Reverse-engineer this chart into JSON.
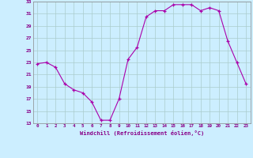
{
  "hours": [
    0,
    1,
    2,
    3,
    4,
    5,
    6,
    7,
    8,
    9,
    10,
    11,
    12,
    13,
    14,
    15,
    16,
    17,
    18,
    19,
    20,
    21,
    22,
    23
  ],
  "windchill": [
    22.8,
    23.0,
    22.2,
    19.5,
    18.5,
    18.0,
    16.5,
    13.5,
    13.5,
    17.0,
    23.5,
    25.5,
    30.5,
    31.5,
    31.5,
    32.5,
    32.5,
    32.5,
    31.5,
    32.0,
    31.5,
    26.5,
    23.0,
    19.5
  ],
  "line_color": "#aa00aa",
  "marker_color": "#aa00aa",
  "bg_color": "#cceeff",
  "grid_color": "#aacccc",
  "text_color": "#880088",
  "xlabel": "Windchill (Refroidissement éolien,°C)",
  "ylim": [
    13,
    33
  ],
  "yticks": [
    13,
    15,
    17,
    19,
    21,
    23,
    25,
    27,
    29,
    31,
    33
  ],
  "xlim": [
    -0.5,
    23.5
  ],
  "xtick_labels": [
    "0",
    "1",
    "2",
    "3",
    "4",
    "5",
    "6",
    "7",
    "8",
    "9",
    "10",
    "11",
    "12",
    "13",
    "14",
    "15",
    "16",
    "17",
    "18",
    "19",
    "20",
    "21",
    "22",
    "23"
  ]
}
